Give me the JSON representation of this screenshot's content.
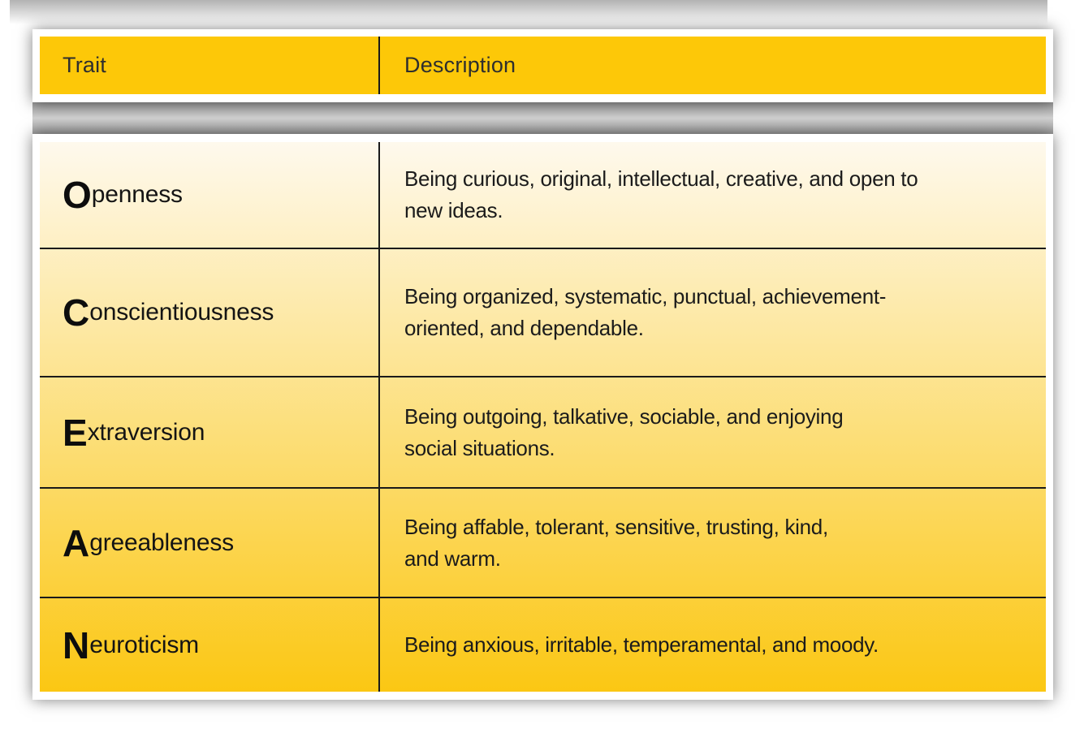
{
  "colors": {
    "accent": "#FDC808",
    "grad-top": "#FEF9ED",
    "grad-bottom": "#FBC713",
    "line-color": "#1A1A1A",
    "text-color": "#1B1B1B"
  },
  "table": {
    "header": {
      "trait_label": "Trait",
      "description_label": "Description"
    },
    "rows": [
      {
        "initial": "O",
        "rest": "penness",
        "line1": "Being curious, original, intellectual, creative, and open to",
        "line2": "new ideas."
      },
      {
        "initial": "C",
        "rest": "onscientiousness",
        "line1": "Being organized, systematic, punctual, achievement-",
        "line2": "oriented, and dependable."
      },
      {
        "initial": "E",
        "rest": "xtraversion",
        "line1": "Being outgoing, talkative, sociable, and enjoying",
        "line2": "social situations."
      },
      {
        "initial": "A",
        "rest": "greeableness",
        "line1": "Being affable, tolerant, sensitive, trusting, kind,",
        "line2": "and warm."
      },
      {
        "initial": "N",
        "rest": "euroticism",
        "line1": "Being anxious, irritable, temperamental, and moody.",
        "line2": ""
      }
    ]
  }
}
